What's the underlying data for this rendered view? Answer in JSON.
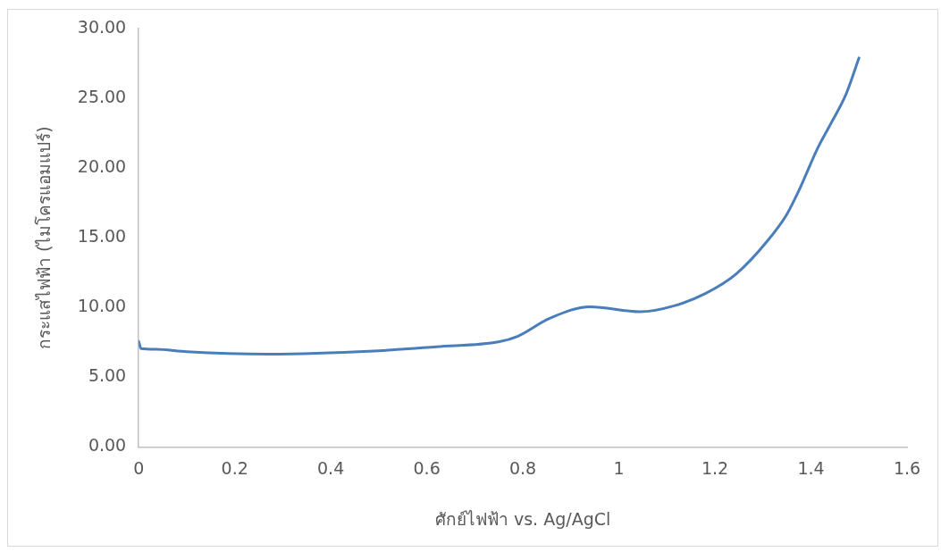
{
  "chart_data": {
    "type": "line",
    "xlabel": "ศักย์ไฟฟ้า vs. Ag/AgCl",
    "ylabel": "กระแสไฟฟ้า (ไมโครแอมแปร์)",
    "xlim": [
      0,
      1.6
    ],
    "xticks": [
      0,
      0.2,
      0.4,
      0.6,
      0.8,
      1,
      1.2,
      1.4,
      1.6
    ],
    "ylim": [
      0,
      30
    ],
    "yticks": [
      {
        "value": 0,
        "label": "0.00"
      },
      {
        "value": 5,
        "label": "5.00"
      },
      {
        "value": 10,
        "label": "10.00"
      },
      {
        "value": 15,
        "label": "15.00"
      },
      {
        "value": 20,
        "label": "20.00"
      },
      {
        "value": 25,
        "label": "25.00"
      },
      {
        "value": 30,
        "label": "30.00"
      }
    ],
    "grid": false,
    "legend": false,
    "marker": "none",
    "line_style": "solid",
    "series": [
      {
        "color": "#4a7ebb",
        "x": [
          0,
          0.005,
          0.035,
          0.1,
          0.27,
          0.49,
          0.62,
          0.751,
          0.79,
          0.855,
          0.94,
          1.044,
          1.115,
          1.18,
          1.245,
          1.31,
          1.35,
          1.375,
          1.415,
          1.44,
          1.473,
          1.5
        ],
        "values": [
          7.57,
          7.05,
          7.0,
          6.83,
          6.66,
          6.88,
          7.19,
          7.55,
          7.95,
          9.21,
          10.05,
          9.69,
          10.12,
          11.0,
          12.43,
          14.8,
          16.7,
          18.4,
          21.5,
          23.1,
          25.3,
          27.9
        ]
      }
    ]
  }
}
